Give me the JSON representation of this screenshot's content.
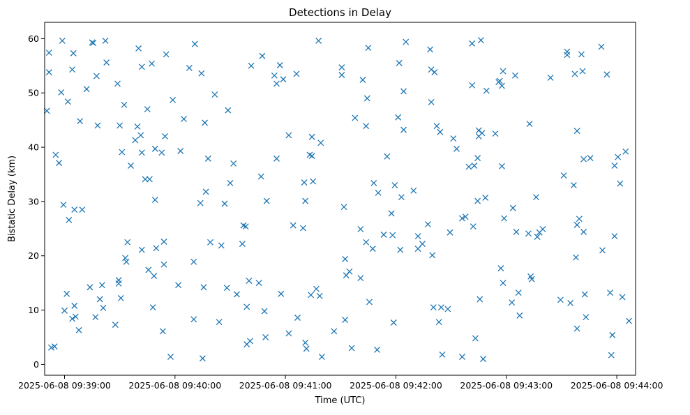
{
  "chart_data": {
    "type": "scatter",
    "title": "Detections in Delay",
    "xlabel": "Time (UTC)",
    "ylabel": "Bistatic Delay (km)",
    "x_unit": "minutes after 2025-06-08 09:39:00",
    "xlim_labels": [
      "2025-06-08 09:38:49",
      "2025-06-08 09:44:00"
    ],
    "ylim": [
      -2,
      63
    ],
    "grid": false,
    "legend": "none",
    "marker": "x",
    "color": "#1f77b4",
    "x_ticks": [
      {
        "label": "2025-06-08 09:39:00",
        "value": 0
      },
      {
        "label": "2025-06-08 09:40:00",
        "value": 1
      },
      {
        "label": "2025-06-08 09:41:00",
        "value": 2
      },
      {
        "label": "2025-06-08 09:42:00",
        "value": 3
      },
      {
        "label": "2025-06-08 09:43:00",
        "value": 4
      },
      {
        "label": "2025-06-08 09:44:00",
        "value": 5
      }
    ],
    "y_ticks": [
      0,
      10,
      20,
      30,
      40,
      50,
      60
    ],
    "points": [
      [
        -0.16,
        46.7
      ],
      [
        -0.14,
        57.4
      ],
      [
        -0.14,
        53.8
      ],
      [
        -0.12,
        3.1
      ],
      [
        -0.09,
        3.3
      ],
      [
        -0.08,
        38.6
      ],
      [
        -0.05,
        37.1
      ],
      [
        -0.03,
        50.1
      ],
      [
        -0.02,
        59.6
      ],
      [
        -0.01,
        29.4
      ],
      [
        0.0,
        9.9
      ],
      [
        0.02,
        13.0
      ],
      [
        0.03,
        48.4
      ],
      [
        0.04,
        26.6
      ],
      [
        0.07,
        8.4
      ],
      [
        0.07,
        54.3
      ],
      [
        0.08,
        57.3
      ],
      [
        0.09,
        10.8
      ],
      [
        0.09,
        28.5
      ],
      [
        0.1,
        8.8
      ],
      [
        0.13,
        6.3
      ],
      [
        0.14,
        44.8
      ],
      [
        0.16,
        28.5
      ],
      [
        0.2,
        50.7
      ],
      [
        0.23,
        14.2
      ],
      [
        0.25,
        59.3
      ],
      [
        0.26,
        59.2
      ],
      [
        0.28,
        8.7
      ],
      [
        0.29,
        53.1
      ],
      [
        0.3,
        44.0
      ],
      [
        0.32,
        12.0
      ],
      [
        0.34,
        14.6
      ],
      [
        0.35,
        10.4
      ],
      [
        0.37,
        59.6
      ],
      [
        0.38,
        55.6
      ],
      [
        0.46,
        7.3
      ],
      [
        0.48,
        51.7
      ],
      [
        0.49,
        15.5
      ],
      [
        0.49,
        14.9
      ],
      [
        0.5,
        44.0
      ],
      [
        0.51,
        12.2
      ],
      [
        0.52,
        39.1
      ],
      [
        0.54,
        47.8
      ],
      [
        0.55,
        19.6
      ],
      [
        0.56,
        18.9
      ],
      [
        0.57,
        22.5
      ],
      [
        0.6,
        36.6
      ],
      [
        0.64,
        41.3
      ],
      [
        0.66,
        43.8
      ],
      [
        0.67,
        58.2
      ],
      [
        0.69,
        42.2
      ],
      [
        0.7,
        39.0
      ],
      [
        0.7,
        54.8
      ],
      [
        0.7,
        21.1
      ],
      [
        0.73,
        34.1
      ],
      [
        0.75,
        47.0
      ],
      [
        0.76,
        17.4
      ],
      [
        0.77,
        34.1
      ],
      [
        0.79,
        55.4
      ],
      [
        0.8,
        10.5
      ],
      [
        0.81,
        16.3
      ],
      [
        0.82,
        39.7
      ],
      [
        0.82,
        30.3
      ],
      [
        0.83,
        21.4
      ],
      [
        0.88,
        39.0
      ],
      [
        0.89,
        6.1
      ],
      [
        0.9,
        18.4
      ],
      [
        0.9,
        22.6
      ],
      [
        0.91,
        42.0
      ],
      [
        0.92,
        57.1
      ],
      [
        0.96,
        1.4
      ],
      [
        0.98,
        48.7
      ],
      [
        1.03,
        14.6
      ],
      [
        1.05,
        39.3
      ],
      [
        1.08,
        45.2
      ],
      [
        1.13,
        54.6
      ],
      [
        1.17,
        8.3
      ],
      [
        1.17,
        18.9
      ],
      [
        1.18,
        59.0
      ],
      [
        1.23,
        29.7
      ],
      [
        1.24,
        53.6
      ],
      [
        1.25,
        1.1
      ],
      [
        1.26,
        14.2
      ],
      [
        1.27,
        44.5
      ],
      [
        1.28,
        31.8
      ],
      [
        1.3,
        37.9
      ],
      [
        1.32,
        22.5
      ],
      [
        1.36,
        49.7
      ],
      [
        1.4,
        7.8
      ],
      [
        1.42,
        21.9
      ],
      [
        1.45,
        29.6
      ],
      [
        1.47,
        14.1
      ],
      [
        1.48,
        46.8
      ],
      [
        1.5,
        33.4
      ],
      [
        1.53,
        37.0
      ],
      [
        1.56,
        12.9
      ],
      [
        1.61,
        22.2
      ],
      [
        1.62,
        25.6
      ],
      [
        1.64,
        25.4
      ],
      [
        1.65,
        10.6
      ],
      [
        1.65,
        3.7
      ],
      [
        1.67,
        15.4
      ],
      [
        1.68,
        4.3
      ],
      [
        1.69,
        55.0
      ],
      [
        1.76,
        15.0
      ],
      [
        1.78,
        34.6
      ],
      [
        1.79,
        56.8
      ],
      [
        1.81,
        9.8
      ],
      [
        1.82,
        5.0
      ],
      [
        1.83,
        30.1
      ],
      [
        1.9,
        53.2
      ],
      [
        1.92,
        51.7
      ],
      [
        1.92,
        37.9
      ],
      [
        1.95,
        55.1
      ],
      [
        1.96,
        13.0
      ],
      [
        1.98,
        52.5
      ],
      [
        2.03,
        42.2
      ],
      [
        2.03,
        5.7
      ],
      [
        2.07,
        25.6
      ],
      [
        2.1,
        53.5
      ],
      [
        2.11,
        8.6
      ],
      [
        2.16,
        25.1
      ],
      [
        2.17,
        33.5
      ],
      [
        2.18,
        4.0
      ],
      [
        2.18,
        30.1
      ],
      [
        2.19,
        2.9
      ],
      [
        2.22,
        38.6
      ],
      [
        2.23,
        12.8
      ],
      [
        2.24,
        41.9
      ],
      [
        2.24,
        38.4
      ],
      [
        2.25,
        33.7
      ],
      [
        2.28,
        13.9
      ],
      [
        2.3,
        59.6
      ],
      [
        2.31,
        12.6
      ],
      [
        2.32,
        40.8
      ],
      [
        2.33,
        1.4
      ],
      [
        2.44,
        6.1
      ],
      [
        2.51,
        54.7
      ],
      [
        2.51,
        53.3
      ],
      [
        2.53,
        29.0
      ],
      [
        2.54,
        8.2
      ],
      [
        2.54,
        19.4
      ],
      [
        2.55,
        16.4
      ],
      [
        2.58,
        17.1
      ],
      [
        2.6,
        3.0
      ],
      [
        2.63,
        45.4
      ],
      [
        2.68,
        15.9
      ],
      [
        2.68,
        24.9
      ],
      [
        2.7,
        52.4
      ],
      [
        2.73,
        22.5
      ],
      [
        2.73,
        43.9
      ],
      [
        2.74,
        49.0
      ],
      [
        2.75,
        58.3
      ],
      [
        2.76,
        11.5
      ],
      [
        2.79,
        21.3
      ],
      [
        2.8,
        33.4
      ],
      [
        2.83,
        2.7
      ],
      [
        2.84,
        31.6
      ],
      [
        2.89,
        23.9
      ],
      [
        2.92,
        38.3
      ],
      [
        2.96,
        27.8
      ],
      [
        2.97,
        23.8
      ],
      [
        2.98,
        7.7
      ],
      [
        2.99,
        33.0
      ],
      [
        3.02,
        45.5
      ],
      [
        3.03,
        55.5
      ],
      [
        3.04,
        21.1
      ],
      [
        3.05,
        30.8
      ],
      [
        3.07,
        43.2
      ],
      [
        3.07,
        50.3
      ],
      [
        3.09,
        59.4
      ],
      [
        3.16,
        32.0
      ],
      [
        3.2,
        23.6
      ],
      [
        3.2,
        21.3
      ],
      [
        3.24,
        22.2
      ],
      [
        3.29,
        25.8
      ],
      [
        3.31,
        58.0
      ],
      [
        3.32,
        54.3
      ],
      [
        3.32,
        48.3
      ],
      [
        3.33,
        20.1
      ],
      [
        3.34,
        10.5
      ],
      [
        3.35,
        53.8
      ],
      [
        3.37,
        43.9
      ],
      [
        3.39,
        7.8
      ],
      [
        3.4,
        42.8
      ],
      [
        3.41,
        10.5
      ],
      [
        3.42,
        1.8
      ],
      [
        3.47,
        10.2
      ],
      [
        3.49,
        24.3
      ],
      [
        3.52,
        41.6
      ],
      [
        3.55,
        39.7
      ],
      [
        3.6,
        1.4
      ],
      [
        3.6,
        26.9
      ],
      [
        3.63,
        27.2
      ],
      [
        3.66,
        36.4
      ],
      [
        3.69,
        59.1
      ],
      [
        3.69,
        51.4
      ],
      [
        3.7,
        25.4
      ],
      [
        3.71,
        36.6
      ],
      [
        3.72,
        4.8
      ],
      [
        3.74,
        38.0
      ],
      [
        3.74,
        30.1
      ],
      [
        3.75,
        42.0
      ],
      [
        3.75,
        43.1
      ],
      [
        3.76,
        12.0
      ],
      [
        3.77,
        59.7
      ],
      [
        3.78,
        42.6
      ],
      [
        3.79,
        1.0
      ],
      [
        3.81,
        30.7
      ],
      [
        3.82,
        50.4
      ],
      [
        3.9,
        42.5
      ],
      [
        3.93,
        52.0
      ],
      [
        3.94,
        52.2
      ],
      [
        3.95,
        17.7
      ],
      [
        3.96,
        51.3
      ],
      [
        3.96,
        36.5
      ],
      [
        3.97,
        15.0
      ],
      [
        3.97,
        54.0
      ],
      [
        3.98,
        26.9
      ],
      [
        4.05,
        11.4
      ],
      [
        4.06,
        28.8
      ],
      [
        4.08,
        53.2
      ],
      [
        4.09,
        24.4
      ],
      [
        4.11,
        13.2
      ],
      [
        4.12,
        9.0
      ],
      [
        4.2,
        24.1
      ],
      [
        4.21,
        44.3
      ],
      [
        4.22,
        16.2
      ],
      [
        4.23,
        15.7
      ],
      [
        4.27,
        30.8
      ],
      [
        4.28,
        23.5
      ],
      [
        4.3,
        24.3
      ],
      [
        4.33,
        24.9
      ],
      [
        4.4,
        52.8
      ],
      [
        4.49,
        11.9
      ],
      [
        4.52,
        34.8
      ],
      [
        4.55,
        57.0
      ],
      [
        4.55,
        57.6
      ],
      [
        4.58,
        11.3
      ],
      [
        4.61,
        33.0
      ],
      [
        4.62,
        53.5
      ],
      [
        4.63,
        19.7
      ],
      [
        4.64,
        6.6
      ],
      [
        4.64,
        43.0
      ],
      [
        4.64,
        25.7
      ],
      [
        4.66,
        26.8
      ],
      [
        4.68,
        57.1
      ],
      [
        4.69,
        54.0
      ],
      [
        4.7,
        37.8
      ],
      [
        4.7,
        24.4
      ],
      [
        4.71,
        12.9
      ],
      [
        4.72,
        8.7
      ],
      [
        4.76,
        38.0
      ],
      [
        4.86,
        58.5
      ],
      [
        4.87,
        21.0
      ],
      [
        4.91,
        53.4
      ],
      [
        4.94,
        13.2
      ],
      [
        4.95,
        1.7
      ],
      [
        4.96,
        5.4
      ],
      [
        4.98,
        36.6
      ],
      [
        4.98,
        23.6
      ],
      [
        5.01,
        38.2
      ],
      [
        5.03,
        33.3
      ],
      [
        5.05,
        12.4
      ],
      [
        5.08,
        39.2
      ],
      [
        5.11,
        8.0
      ]
    ]
  }
}
